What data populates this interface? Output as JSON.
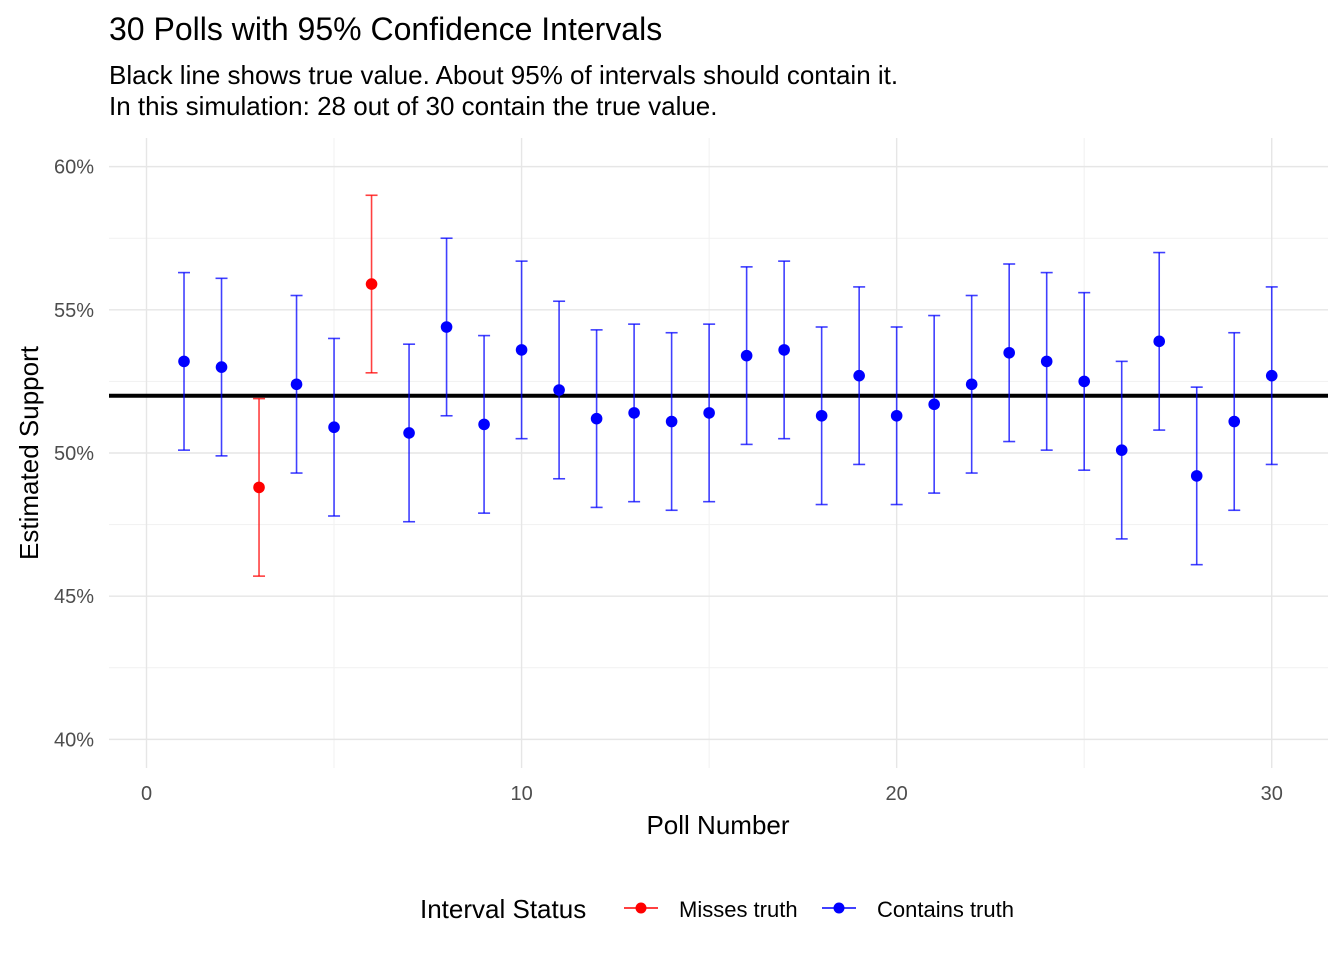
{
  "chart_data": {
    "type": "scatter",
    "title": "30 Polls with 95% Confidence Intervals",
    "subtitle_lines": [
      "Black line shows true value. About 95% of intervals should contain it.",
      "In this simulation: 28 out of 30 contain the true value."
    ],
    "xlabel": "Poll Number",
    "ylabel": "Estimated Support",
    "xlim": [
      -1,
      31.5
    ],
    "ylim": [
      39,
      61
    ],
    "x_ticks": [
      0,
      10,
      20,
      30
    ],
    "x_tick_labels": [
      "0",
      "10",
      "20",
      "30"
    ],
    "y_ticks": [
      40,
      45,
      50,
      55,
      60
    ],
    "y_tick_labels": [
      "40%",
      "45%",
      "50%",
      "55%",
      "60%"
    ],
    "grid": true,
    "true_value": 52,
    "legend": {
      "title": "Interval Status",
      "position": "bottom",
      "entries": [
        {
          "label": "Misses truth",
          "color": "#ff0000"
        },
        {
          "label": "Contains truth",
          "color": "#0000ff"
        }
      ]
    },
    "series": [
      {
        "name": "Misses truth",
        "color": "#ff0000",
        "points": [
          {
            "x": 3,
            "y": 48.8,
            "lo": 45.7,
            "hi": 51.9
          },
          {
            "x": 6,
            "y": 55.9,
            "lo": 52.8,
            "hi": 59.0
          }
        ]
      },
      {
        "name": "Contains truth",
        "color": "#0000ff",
        "points": [
          {
            "x": 1,
            "y": 53.2,
            "lo": 50.1,
            "hi": 56.3
          },
          {
            "x": 2,
            "y": 53.0,
            "lo": 49.9,
            "hi": 56.1
          },
          {
            "x": 4,
            "y": 52.4,
            "lo": 49.3,
            "hi": 55.5
          },
          {
            "x": 5,
            "y": 50.9,
            "lo": 47.8,
            "hi": 54.0
          },
          {
            "x": 7,
            "y": 50.7,
            "lo": 47.6,
            "hi": 53.8
          },
          {
            "x": 8,
            "y": 54.4,
            "lo": 51.3,
            "hi": 57.5
          },
          {
            "x": 9,
            "y": 51.0,
            "lo": 47.9,
            "hi": 54.1
          },
          {
            "x": 10,
            "y": 53.6,
            "lo": 50.5,
            "hi": 56.7
          },
          {
            "x": 11,
            "y": 52.2,
            "lo": 49.1,
            "hi": 55.3
          },
          {
            "x": 12,
            "y": 51.2,
            "lo": 48.1,
            "hi": 54.3
          },
          {
            "x": 13,
            "y": 51.4,
            "lo": 48.3,
            "hi": 54.5
          },
          {
            "x": 14,
            "y": 51.1,
            "lo": 48.0,
            "hi": 54.2
          },
          {
            "x": 15,
            "y": 51.4,
            "lo": 48.3,
            "hi": 54.5
          },
          {
            "x": 16,
            "y": 53.4,
            "lo": 50.3,
            "hi": 56.5
          },
          {
            "x": 17,
            "y": 53.6,
            "lo": 50.5,
            "hi": 56.7
          },
          {
            "x": 18,
            "y": 51.3,
            "lo": 48.2,
            "hi": 54.4
          },
          {
            "x": 19,
            "y": 52.7,
            "lo": 49.6,
            "hi": 55.8
          },
          {
            "x": 20,
            "y": 51.3,
            "lo": 48.2,
            "hi": 54.4
          },
          {
            "x": 21,
            "y": 51.7,
            "lo": 48.6,
            "hi": 54.8
          },
          {
            "x": 22,
            "y": 52.4,
            "lo": 49.3,
            "hi": 55.5
          },
          {
            "x": 23,
            "y": 53.5,
            "lo": 50.4,
            "hi": 56.6
          },
          {
            "x": 24,
            "y": 53.2,
            "lo": 50.1,
            "hi": 56.3
          },
          {
            "x": 25,
            "y": 52.5,
            "lo": 49.4,
            "hi": 55.6
          },
          {
            "x": 26,
            "y": 50.1,
            "lo": 47.0,
            "hi": 53.2
          },
          {
            "x": 27,
            "y": 53.9,
            "lo": 50.8,
            "hi": 57.0
          },
          {
            "x": 28,
            "y": 49.2,
            "lo": 46.1,
            "hi": 52.3
          },
          {
            "x": 29,
            "y": 51.1,
            "lo": 48.0,
            "hi": 54.2
          },
          {
            "x": 30,
            "y": 52.7,
            "lo": 49.6,
            "hi": 55.8
          }
        ]
      }
    ]
  }
}
